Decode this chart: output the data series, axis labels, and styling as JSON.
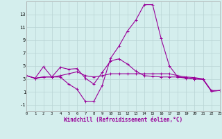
{
  "xlabel": "Windchill (Refroidissement éolien,°C)",
  "x": [
    0,
    1,
    2,
    3,
    4,
    5,
    6,
    7,
    8,
    9,
    10,
    11,
    12,
    13,
    14,
    15,
    16,
    17,
    18,
    19,
    20,
    21,
    22,
    23
  ],
  "line1": [
    3.5,
    3.1,
    3.3,
    3.3,
    3.5,
    3.8,
    4.1,
    3.5,
    3.3,
    3.5,
    3.8,
    3.8,
    3.8,
    3.8,
    3.8,
    3.8,
    3.8,
    3.8,
    3.5,
    3.3,
    3.2,
    3.0,
    1.2,
    1.2
  ],
  "line2": [
    3.5,
    3.1,
    4.9,
    3.3,
    3.3,
    2.2,
    1.4,
    -0.5,
    -0.5,
    2.0,
    6.2,
    8.1,
    10.4,
    12.1,
    14.5,
    14.5,
    9.3,
    5.0,
    3.3,
    3.1,
    3.0,
    2.9,
    1.1,
    1.2
  ],
  "line3": [
    3.5,
    3.1,
    3.3,
    3.3,
    4.8,
    4.5,
    4.6,
    3.1,
    2.2,
    4.0,
    5.8,
    6.1,
    5.3,
    4.2,
    3.5,
    3.4,
    3.3,
    3.3,
    3.3,
    3.2,
    3.0,
    3.0,
    1.1,
    1.2
  ],
  "line_color": "#990099",
  "bg_color": "#d4eeed",
  "grid_color": "#b8d4d4",
  "ylim": [
    -2.0,
    15.0
  ],
  "yticks": [
    -1,
    1,
    3,
    5,
    7,
    9,
    11,
    13
  ],
  "xticks": [
    0,
    1,
    2,
    3,
    4,
    5,
    6,
    7,
    8,
    9,
    10,
    11,
    12,
    13,
    14,
    15,
    16,
    17,
    18,
    19,
    20,
    21,
    22,
    23
  ],
  "xlim": [
    0,
    23
  ]
}
